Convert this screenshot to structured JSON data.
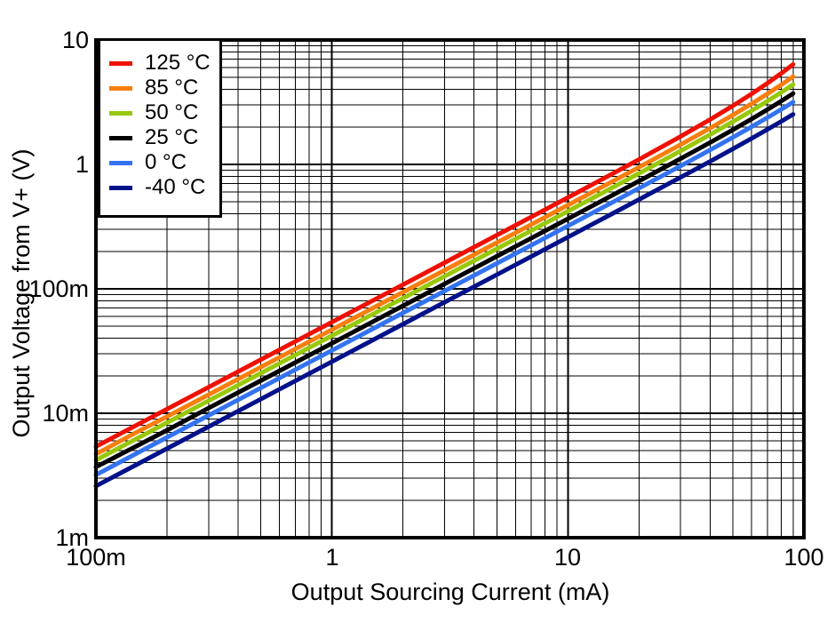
{
  "figure": {
    "background": "#ffffff",
    "grid_color": "#000000",
    "border_color": "#000000"
  },
  "chart_data": {
    "type": "line",
    "title": "",
    "xlabel": "Output Sourcing Current (mA)",
    "ylabel": "Output Voltage from V+ (V)",
    "x_scale": "log",
    "y_scale": "log",
    "xlim": [
      0.1,
      100
    ],
    "ylim": [
      0.001,
      10
    ],
    "grid": "major and minor log gridlines, black, on",
    "legend_position": "top-left",
    "x_tick_labels": [
      {
        "value": 0.1,
        "label": "100m"
      },
      {
        "value": 1,
        "label": "1"
      },
      {
        "value": 10,
        "label": "10"
      },
      {
        "value": 100,
        "label": "100"
      }
    ],
    "y_tick_labels": [
      {
        "value": 10,
        "label": "10"
      },
      {
        "value": 1,
        "label": "1"
      },
      {
        "value": 0.1,
        "label": "100m"
      },
      {
        "value": 0.01,
        "label": "10m"
      },
      {
        "value": 0.001,
        "label": "1m"
      }
    ],
    "x_mA": [
      0.1,
      0.15,
      0.2,
      0.3,
      0.5,
      0.7,
      1,
      1.5,
      2,
      3,
      5,
      7,
      10,
      15,
      20,
      30,
      40,
      50,
      60,
      70,
      80,
      90
    ],
    "series": [
      {
        "name": "125 °C",
        "color": "#EE1100",
        "values_V": [
          0.0054,
          0.0081,
          0.0108,
          0.0162,
          0.027,
          0.0378,
          0.054,
          0.081,
          0.108,
          0.1621,
          0.2703,
          0.3787,
          0.5421,
          0.817,
          1.0965,
          1.6758,
          2.2923,
          2.9583,
          3.6864,
          4.4889,
          5.3781,
          6.3666
        ]
      },
      {
        "name": "85 °C",
        "color": "#F87E0E",
        "values_V": [
          0.0047,
          0.0071,
          0.0094,
          0.0141,
          0.0235,
          0.0329,
          0.047,
          0.0705,
          0.094,
          0.141,
          0.2351,
          0.3291,
          0.4712,
          0.7089,
          0.9493,
          1.4413,
          1.9543,
          2.4951,
          3.0707,
          3.6881,
          4.3542,
          5.076
        ]
      },
      {
        "name": "50 °C",
        "color": "#97C80A",
        "values_V": [
          0.0042,
          0.0063,
          0.0084,
          0.0126,
          0.021,
          0.0294,
          0.042,
          0.063,
          0.084,
          0.126,
          0.2101,
          0.2941,
          0.4208,
          0.6328,
          0.8466,
          1.2824,
          1.7331,
          2.2037,
          2.6992,
          3.2246,
          3.7848,
          4.3848
        ]
      },
      {
        "name": "25 °C",
        "color": "#000000",
        "values_V": [
          0.0037,
          0.0055,
          0.0073,
          0.011,
          0.0183,
          0.0256,
          0.0365,
          0.0548,
          0.073,
          0.1095,
          0.1826,
          0.2556,
          0.3656,
          0.5495,
          0.7347,
          1.1108,
          1.4975,
          1.8982,
          2.3165,
          2.756,
          3.2199,
          3.7121
        ]
      },
      {
        "name": "0 °C",
        "color": "#3373F0",
        "values_V": [
          0.0032,
          0.0048,
          0.0064,
          0.0096,
          0.016,
          0.0224,
          0.032,
          0.048,
          0.064,
          0.096,
          0.1601,
          0.2241,
          0.3204,
          0.4813,
          0.6432,
          0.9707,
          1.3053,
          1.6494,
          2.0053,
          2.3755,
          2.7623,
          3.168
        ]
      },
      {
        "name": "-40 °C",
        "color": "#03128A",
        "values_V": [
          0.0026,
          0.0039,
          0.0052,
          0.0078,
          0.013,
          0.0182,
          0.026,
          0.039,
          0.052,
          0.078,
          0.13,
          0.1821,
          0.2603,
          0.3909,
          0.5221,
          0.7869,
          1.0564,
          1.3321,
          1.6155,
          1.9081,
          2.2115,
          2.5272
        ]
      }
    ]
  }
}
